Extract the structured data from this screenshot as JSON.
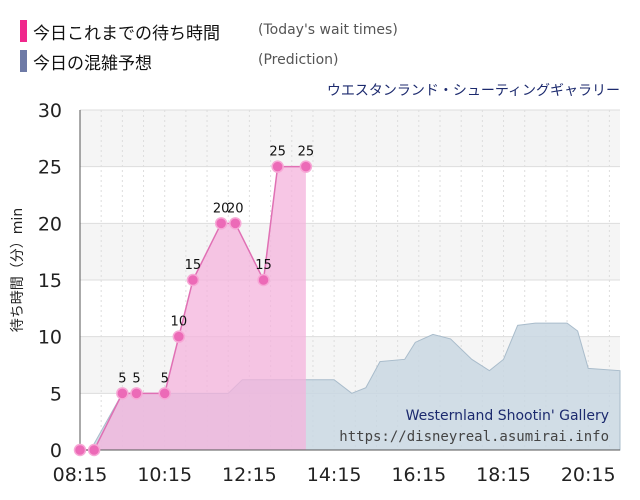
{
  "legend": [
    {
      "label": "今日これまでの待ち時間",
      "note": "(Today's wait times)",
      "color": "#f0288c"
    },
    {
      "label": "今日の混雑予想",
      "note": "(Prediction)",
      "color": "#6e7aa6"
    }
  ],
  "attraction_name": "ウエスタンランド・シューティングギャラリー",
  "watermark": {
    "name": "Westernland Shootin' Gallery",
    "url": "https://disneyreal.asumirai.info"
  },
  "colors": {
    "actual_fill": "#f4b3dc",
    "actual_line": "#e070b4",
    "actual_point": "#ec6ab7",
    "prediction_fill": "#c9d7e2",
    "prediction_line": "#a9bccb",
    "plot_bg": "#f5f5f5",
    "watermark_name": "#1c2a6e",
    "watermark_url": "#444444"
  },
  "chart_data": {
    "type": "area",
    "ylabel": "待ち時間（分）min",
    "xlim": [
      "08:15",
      "21:00"
    ],
    "ylim": [
      0,
      30
    ],
    "yticks": [
      0,
      5,
      10,
      15,
      20,
      25,
      30
    ],
    "xticks": [
      "08:15",
      "10:15",
      "12:15",
      "14:15",
      "16:15",
      "18:15",
      "20:15"
    ],
    "grid": true,
    "series": [
      {
        "name": "今日これまでの待ち時間",
        "points": [
          {
            "x": "08:15",
            "y": 0,
            "label": ""
          },
          {
            "x": "08:35",
            "y": 0,
            "label": ""
          },
          {
            "x": "09:15",
            "y": 5,
            "label": "5"
          },
          {
            "x": "09:35",
            "y": 5,
            "label": "5"
          },
          {
            "x": "10:15",
            "y": 5,
            "label": "5"
          },
          {
            "x": "10:35",
            "y": 10,
            "label": "10"
          },
          {
            "x": "10:55",
            "y": 15,
            "label": "15"
          },
          {
            "x": "11:35",
            "y": 20,
            "label": "20"
          },
          {
            "x": "11:55",
            "y": 20,
            "label": "20"
          },
          {
            "x": "12:35",
            "y": 15,
            "label": "15"
          },
          {
            "x": "12:55",
            "y": 25,
            "label": "25"
          },
          {
            "x": "13:35",
            "y": 25,
            "label": "25"
          }
        ]
      },
      {
        "name": "今日の混雑予想",
        "points": [
          {
            "x": "08:30",
            "y": 0
          },
          {
            "x": "09:15",
            "y": 5
          },
          {
            "x": "11:45",
            "y": 5
          },
          {
            "x": "12:05",
            "y": 6.2
          },
          {
            "x": "14:15",
            "y": 6.2
          },
          {
            "x": "14:40",
            "y": 5
          },
          {
            "x": "15:00",
            "y": 5.5
          },
          {
            "x": "15:20",
            "y": 7.8
          },
          {
            "x": "15:55",
            "y": 8
          },
          {
            "x": "16:10",
            "y": 9.5
          },
          {
            "x": "16:35",
            "y": 10.2
          },
          {
            "x": "17:00",
            "y": 9.8
          },
          {
            "x": "17:30",
            "y": 8
          },
          {
            "x": "17:55",
            "y": 7
          },
          {
            "x": "18:15",
            "y": 8
          },
          {
            "x": "18:35",
            "y": 11
          },
          {
            "x": "19:00",
            "y": 11.2
          },
          {
            "x": "19:45",
            "y": 11.2
          },
          {
            "x": "20:00",
            "y": 10.5
          },
          {
            "x": "20:15",
            "y": 7.2
          },
          {
            "x": "21:00",
            "y": 7
          }
        ]
      }
    ]
  }
}
